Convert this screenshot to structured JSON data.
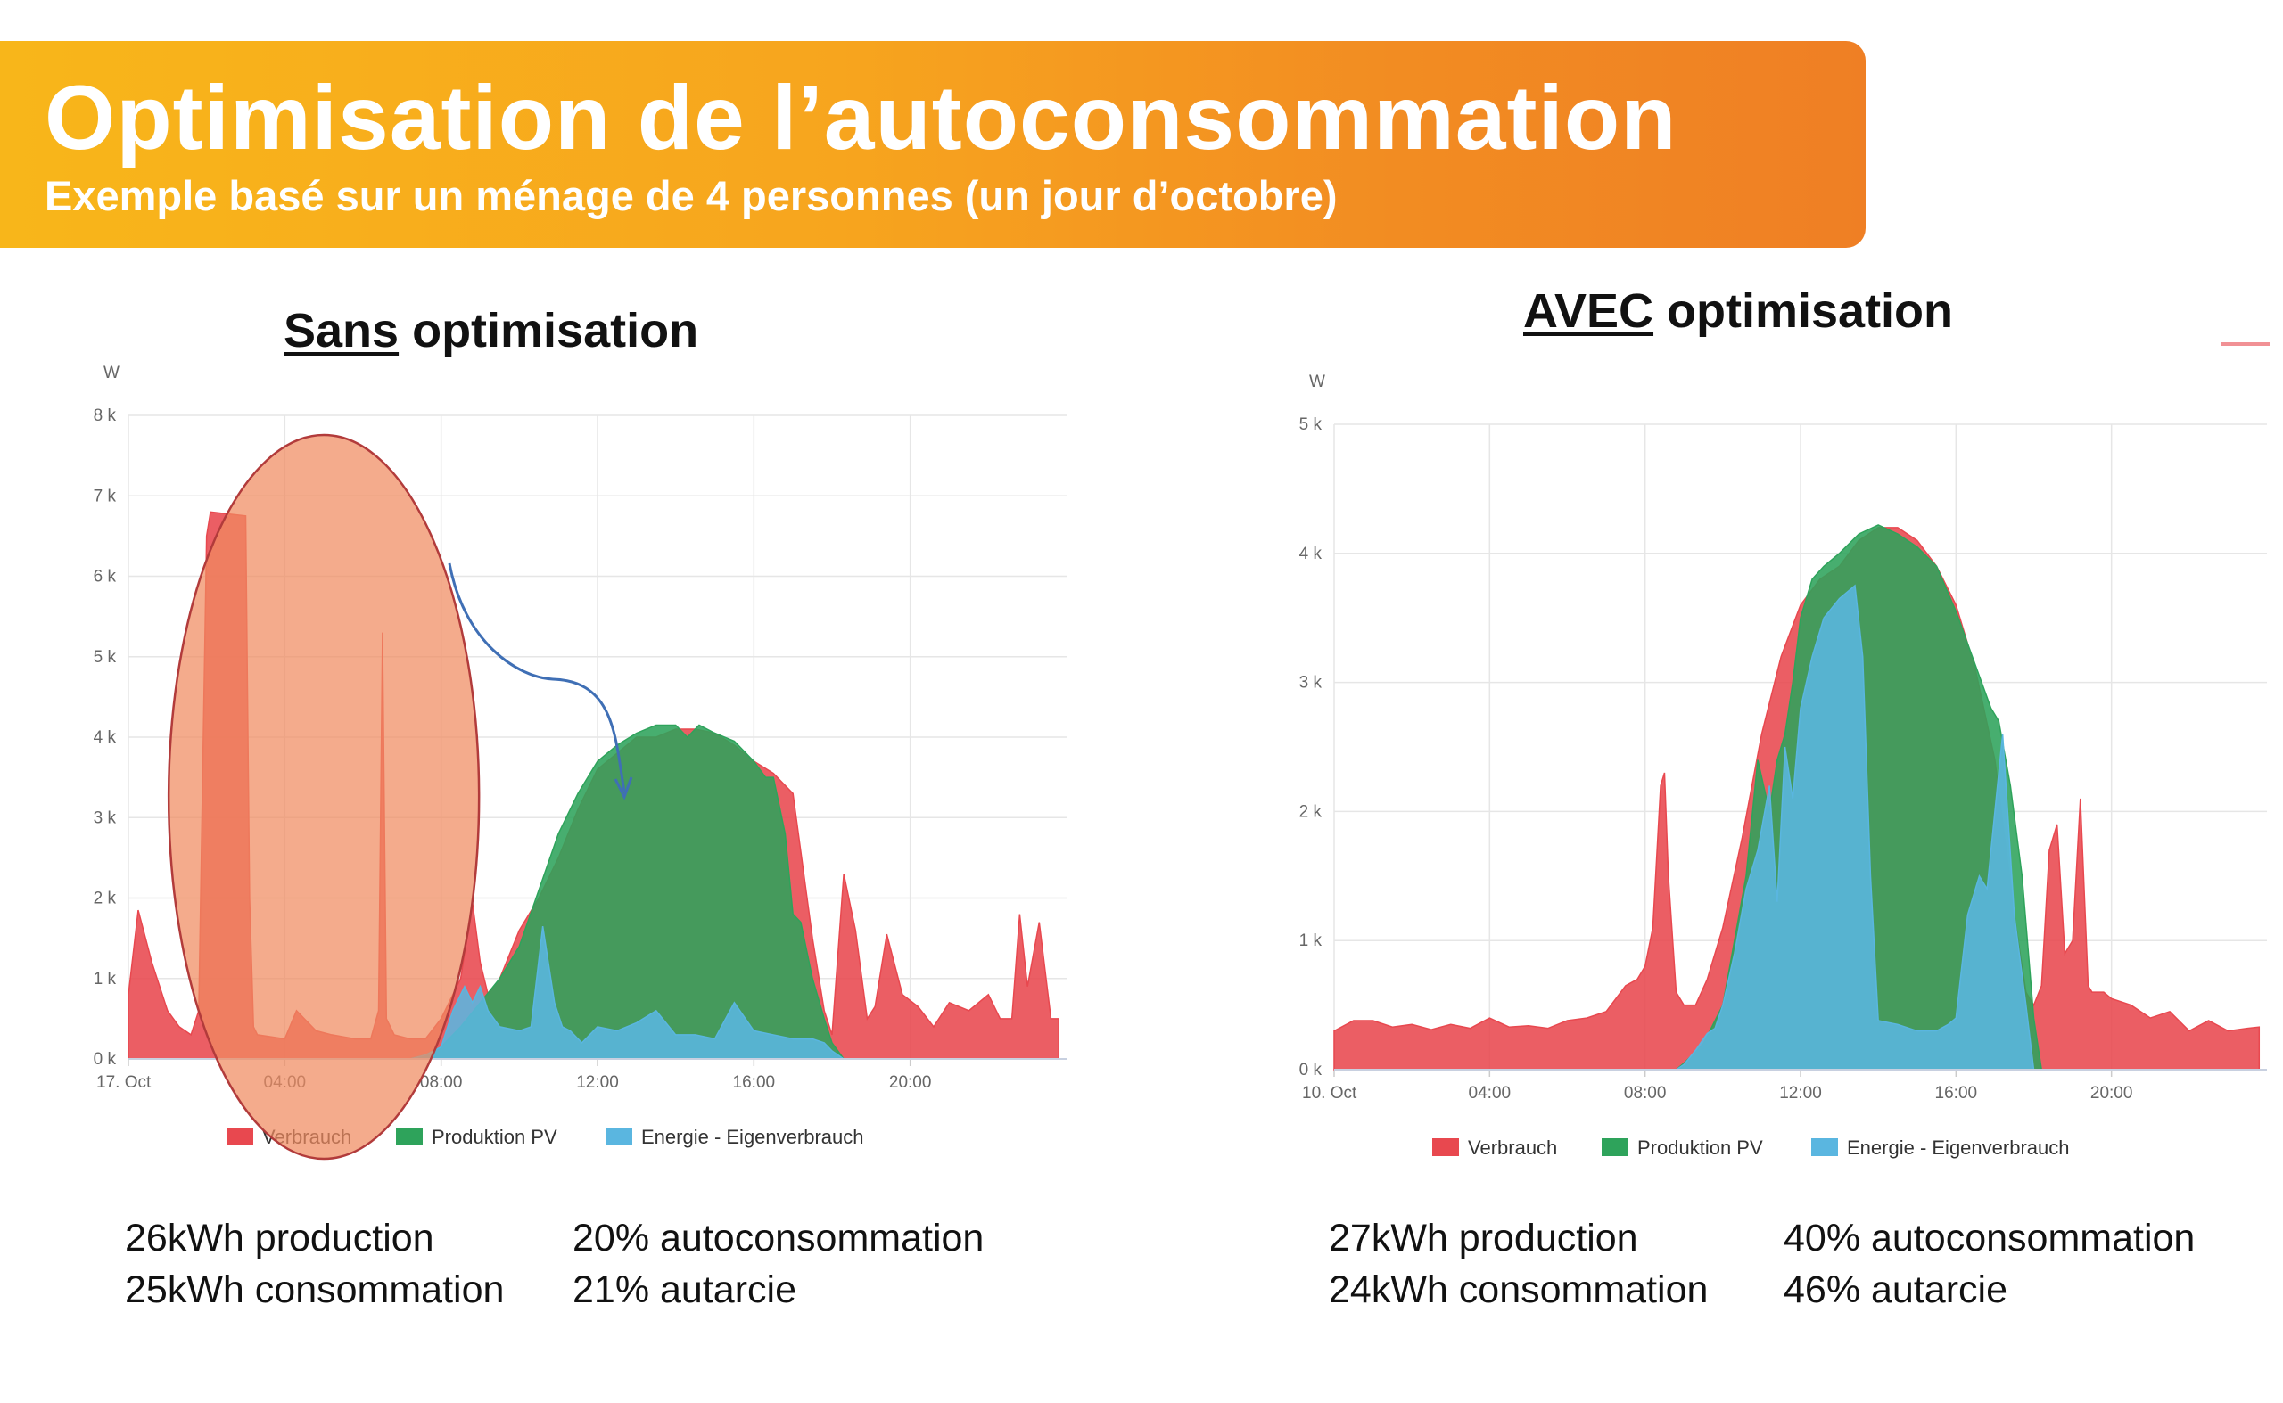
{
  "banner": {
    "title": "Optimisation de l’autoconsommation",
    "subtitle": "Exemple basé sur un ménage de 4 personnes (un jour d’octobre)"
  },
  "left": {
    "title_underlined": "Sans",
    "title_rest": " optimisation",
    "stats": {
      "production": "26kWh production",
      "consommation": "25kWh consommation",
      "autoconsommation": "20% autoconsommation",
      "autarcie": "21% autarcie"
    }
  },
  "right": {
    "title_underlined": "AVEC",
    "title_rest": " optimisation",
    "stats": {
      "production": "27kWh production",
      "consommation": "24kWh consommation",
      "autoconsommation": "40% autoconsommation",
      "autarcie": "46% autarcie"
    }
  },
  "colors": {
    "verbrauch": "#e8484f",
    "produktion": "#2ea35b",
    "eigenverbrauch": "#5ab6e0",
    "highlight_fill": "#f08a60",
    "highlight_stroke": "#b23b3b",
    "arrow": "#3f6fb5"
  },
  "chart_data": [
    {
      "type": "area",
      "ylabel": "W",
      "ylim": [
        0,
        8000
      ],
      "yticks": [
        "0 k",
        "1 k",
        "2 k",
        "3 k",
        "4 k",
        "5 k",
        "6 k",
        "7 k",
        "8 k"
      ],
      "xlim": [
        0,
        24
      ],
      "xticks": [
        "17. Oct",
        "04:00",
        "08:00",
        "12:00",
        "16:00",
        "20:00"
      ],
      "legend": [
        "Verbrauch",
        "Produktion PV",
        "Energie - Eigenverbrauch"
      ],
      "legend_position": "bottom",
      "series": [
        {
          "name": "Verbrauch",
          "x": [
            0,
            0.25,
            0.6,
            1.0,
            1.3,
            1.6,
            1.8,
            2.0,
            2.1,
            3.0,
            3.1,
            3.2,
            3.3,
            4.0,
            4.3,
            4.8,
            5.2,
            5.8,
            6.2,
            6.4,
            6.5,
            6.6,
            6.8,
            7.2,
            7.6,
            8.0,
            8.5,
            8.8,
            9.0,
            9.2,
            9.5,
            10.0,
            10.5,
            11.0,
            11.5,
            12.0,
            12.5,
            13.0,
            13.5,
            14.0,
            14.5,
            15.0,
            15.5,
            16.0,
            16.5,
            17.0,
            17.5,
            17.8,
            18.0,
            18.3,
            18.6,
            18.9,
            19.1,
            19.4,
            19.8,
            20.2,
            20.6,
            21.0,
            21.5,
            22.0,
            22.3,
            22.6,
            22.8,
            23.0,
            23.3,
            23.6,
            23.8
          ],
          "values": [
            800,
            1850,
            1200,
            600,
            400,
            300,
            600,
            6500,
            6800,
            6750,
            2000,
            400,
            300,
            250,
            600,
            350,
            300,
            250,
            250,
            600,
            5300,
            500,
            300,
            250,
            250,
            500,
            1000,
            1950,
            1200,
            800,
            1000,
            1600,
            2000,
            2500,
            3100,
            3600,
            3800,
            4000,
            4000,
            4100,
            4100,
            4050,
            3900,
            3700,
            3550,
            3300,
            1500,
            600,
            300,
            2300,
            1600,
            500,
            650,
            1550,
            800,
            650,
            400,
            700,
            600,
            800,
            500,
            500,
            1800,
            900,
            1700,
            500,
            500
          ]
        },
        {
          "name": "Produktion PV",
          "x": [
            7.2,
            7.6,
            8.0,
            8.5,
            9.0,
            9.5,
            10.0,
            10.5,
            11.0,
            11.5,
            12.0,
            12.5,
            13.0,
            13.5,
            14.0,
            14.3,
            14.6,
            15.0,
            15.5,
            16.0,
            16.3,
            16.5,
            16.8,
            17.0,
            17.2,
            17.5,
            17.8,
            18.0,
            18.3
          ],
          "values": [
            0,
            50,
            150,
            400,
            700,
            1000,
            1400,
            2100,
            2800,
            3300,
            3700,
            3900,
            4050,
            4150,
            4150,
            4000,
            4150,
            4050,
            3950,
            3700,
            3500,
            3500,
            2800,
            1800,
            1700,
            1000,
            500,
            200,
            0
          ]
        },
        {
          "name": "Energie - Eigenverbrauch",
          "x": [
            7.2,
            7.6,
            8.0,
            8.3,
            8.6,
            8.8,
            9.0,
            9.2,
            9.5,
            10.0,
            10.3,
            10.6,
            10.9,
            11.1,
            11.3,
            11.6,
            12.0,
            12.5,
            13.0,
            13.5,
            14.0,
            14.5,
            15.0,
            15.5,
            16.0,
            16.5,
            17.0,
            17.5,
            17.8,
            18.0,
            18.3
          ],
          "values": [
            0,
            50,
            150,
            600,
            900,
            700,
            900,
            600,
            400,
            350,
            400,
            1650,
            700,
            400,
            350,
            200,
            400,
            350,
            450,
            600,
            300,
            300,
            250,
            700,
            350,
            300,
            250,
            250,
            200,
            100,
            0
          ]
        }
      ]
    },
    {
      "type": "area",
      "ylabel": "W",
      "ylim": [
        0,
        5000
      ],
      "yticks": [
        "0 k",
        "1 k",
        "2 k",
        "3 k",
        "4 k",
        "5 k"
      ],
      "xlim": [
        0,
        24
      ],
      "xticks": [
        "10. Oct",
        "04:00",
        "08:00",
        "12:00",
        "16:00",
        "20:00"
      ],
      "legend": [
        "Verbrauch",
        "Produktion PV",
        "Energie - Eigenverbrauch"
      ],
      "legend_position": "bottom",
      "series": [
        {
          "name": "Verbrauch",
          "x": [
            0,
            0.5,
            1.0,
            1.5,
            2.0,
            2.5,
            3.0,
            3.5,
            4.0,
            4.5,
            5.0,
            5.5,
            6.0,
            6.5,
            7.0,
            7.5,
            7.8,
            8.0,
            8.2,
            8.4,
            8.5,
            8.6,
            8.8,
            9.0,
            9.3,
            9.6,
            10.0,
            10.5,
            11.0,
            11.5,
            12.0,
            12.5,
            13.0,
            13.5,
            14.0,
            14.5,
            15.0,
            15.5,
            16.0,
            16.5,
            17.0,
            17.5,
            17.8,
            18.0,
            18.2,
            18.4,
            18.6,
            18.8,
            19.0,
            19.2,
            19.4,
            19.5,
            19.6,
            19.8,
            20.0,
            20.5,
            21.0,
            21.5,
            22.0,
            22.5,
            23.0,
            23.5,
            23.8
          ],
          "values": [
            300,
            380,
            380,
            330,
            350,
            310,
            350,
            320,
            400,
            330,
            340,
            320,
            380,
            400,
            450,
            650,
            700,
            800,
            1100,
            2200,
            2300,
            1500,
            600,
            500,
            500,
            700,
            1100,
            1800,
            2600,
            3200,
            3600,
            3800,
            3900,
            4100,
            4200,
            4200,
            4100,
            3900,
            3600,
            3100,
            2400,
            1200,
            600,
            500,
            650,
            1700,
            1900,
            900,
            1000,
            2100,
            650,
            600,
            600,
            600,
            550,
            500,
            400,
            450,
            300,
            380,
            300,
            320,
            330
          ]
        },
        {
          "name": "Produktion PV",
          "x": [
            8.8,
            9.0,
            9.5,
            10.0,
            10.3,
            10.6,
            10.9,
            11.2,
            11.4,
            11.6,
            11.8,
            12.0,
            12.3,
            12.6,
            13.0,
            13.5,
            14.0,
            14.5,
            15.0,
            15.5,
            16.0,
            16.3,
            16.6,
            16.9,
            17.1,
            17.4,
            17.7,
            18.0,
            18.2
          ],
          "values": [
            0,
            50,
            200,
            500,
            1000,
            1500,
            2400,
            2000,
            2400,
            2600,
            3000,
            3500,
            3800,
            3900,
            4000,
            4150,
            4220,
            4150,
            4050,
            3900,
            3550,
            3300,
            3050,
            2800,
            2700,
            2200,
            1500,
            400,
            0
          ]
        },
        {
          "name": "Energie - Eigenverbrauch",
          "x": [
            8.8,
            9.0,
            9.3,
            9.6,
            9.8,
            10.0,
            10.3,
            10.6,
            10.9,
            11.2,
            11.4,
            11.6,
            11.8,
            12.0,
            12.3,
            12.6,
            13.0,
            13.4,
            13.6,
            13.8,
            14.0,
            14.5,
            15.0,
            15.5,
            15.8,
            16.0,
            16.3,
            16.6,
            16.8,
            17.0,
            17.2,
            17.5,
            17.8,
            18.0
          ],
          "values": [
            0,
            40,
            150,
            280,
            320,
            500,
            900,
            1400,
            1700,
            2200,
            1300,
            2500,
            2100,
            2800,
            3200,
            3500,
            3650,
            3750,
            3200,
            1500,
            380,
            350,
            300,
            300,
            350,
            400,
            1200,
            1500,
            1400,
            2000,
            2600,
            1200,
            500,
            0
          ]
        }
      ]
    }
  ]
}
